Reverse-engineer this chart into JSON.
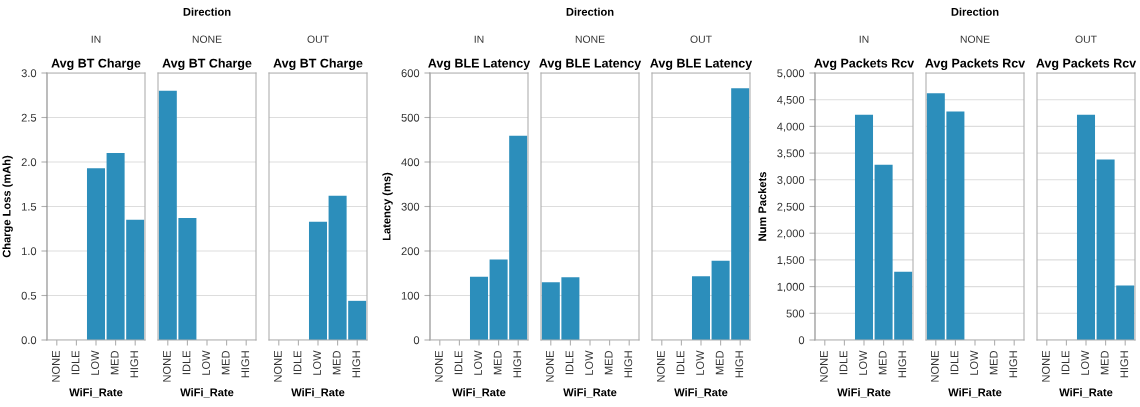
{
  "chart_data": [
    {
      "type": "bar",
      "title": "Avg BT Charge",
      "subtitle": "IN",
      "xlabel": "WiFi_Rate",
      "ylabel": "Charge Loss (mAh)",
      "categories": [
        "NONE",
        "IDLE",
        "LOW",
        "MED",
        "HIGH"
      ],
      "values": [
        null,
        null,
        1.93,
        2.1,
        1.35
      ],
      "color": "#2c8ebb",
      "ylim": [
        0,
        3
      ],
      "yticks": [
        {
          "value": 0,
          "label": "0.0"
        },
        0.5,
        {
          "value": 1,
          "label": "1.0"
        },
        1.5,
        {
          "value": 2,
          "label": "2.0"
        },
        2.5,
        {
          "value": 3,
          "label": "3.0"
        }
      ],
      "grid": "y"
    },
    {
      "type": "bar",
      "title": "Avg BT Charge",
      "subtitle": "NONE",
      "xlabel": "WiFi_Rate",
      "annotations": [
        "Direction"
      ],
      "categories": [
        "NONE",
        "IDLE",
        "LOW",
        "MED",
        "HIGH"
      ],
      "values": [
        2.8,
        1.37,
        null,
        null,
        null
      ],
      "color": "#2c8ebb",
      "ylim": [
        0,
        3
      ],
      "yticks": [
        0,
        0.5,
        1,
        1.5,
        2,
        2.5,
        3
      ],
      "grid": "y",
      "tick_labels": "x"
    },
    {
      "type": "bar",
      "title": "Avg BT Charge",
      "subtitle": "OUT",
      "xlabel": "WiFi_Rate",
      "categories": [
        "NONE",
        "IDLE",
        "LOW",
        "MED",
        "HIGH"
      ],
      "values": [
        null,
        null,
        1.33,
        1.62,
        0.44
      ],
      "color": "#2c8ebb",
      "ylim": [
        0,
        3
      ],
      "yticks": [
        0,
        0.5,
        1,
        1.5,
        2,
        2.5,
        3
      ],
      "grid": "y",
      "tick_labels": "x"
    },
    {
      "type": "bar",
      "title": "Avg BLE Latency",
      "subtitle": "IN",
      "xlabel": "WiFi_Rate",
      "ylabel": "Latency (ms)",
      "categories": [
        "NONE",
        "IDLE",
        "LOW",
        "MED",
        "HIGH"
      ],
      "values": [
        null,
        null,
        142,
        181,
        459
      ],
      "color": "#2c8ebb",
      "ylim": [
        0,
        600
      ],
      "yticks": [
        0,
        100,
        200,
        300,
        400,
        500,
        600
      ],
      "grid": "y"
    },
    {
      "type": "bar",
      "title": "Avg BLE Latency",
      "subtitle": "NONE",
      "xlabel": "WiFi_Rate",
      "annotations": [
        "Direction"
      ],
      "categories": [
        "NONE",
        "IDLE",
        "LOW",
        "MED",
        "HIGH"
      ],
      "values": [
        130,
        141,
        null,
        null,
        null
      ],
      "color": "#2c8ebb",
      "ylim": [
        0,
        600
      ],
      "yticks": [
        0,
        100,
        200,
        300,
        400,
        500,
        600
      ],
      "grid": "y",
      "tick_labels": "x"
    },
    {
      "type": "bar",
      "title": "Avg BLE Latency",
      "subtitle": "OUT",
      "xlabel": "WiFi_Rate",
      "categories": [
        "NONE",
        "IDLE",
        "LOW",
        "MED",
        "HIGH"
      ],
      "values": [
        null,
        null,
        143,
        178,
        566
      ],
      "color": "#2c8ebb",
      "ylim": [
        0,
        600
      ],
      "yticks": [
        0,
        100,
        200,
        300,
        400,
        500,
        600
      ],
      "grid": "y",
      "tick_labels": "x"
    },
    {
      "type": "bar",
      "title": "Avg Packets Rcv",
      "subtitle": "IN",
      "xlabel": "WiFi_Rate",
      "ylabel": "Num Packets",
      "categories": [
        "NONE",
        "IDLE",
        "LOW",
        "MED",
        "HIGH"
      ],
      "values": [
        null,
        null,
        4220,
        3280,
        1280
      ],
      "color": "#2c8ebb",
      "ylim": [
        0,
        5000
      ],
      "yticks": [
        0,
        500,
        {
          "value": 1000,
          "label": "1,000"
        },
        {
          "value": 1500,
          "label": "1,500"
        },
        {
          "value": 2000,
          "label": "2,000"
        },
        {
          "value": 2500,
          "label": "2,500"
        },
        {
          "value": 3000,
          "label": "3,000"
        },
        {
          "value": 3500,
          "label": "3,500"
        },
        {
          "value": 4000,
          "label": "4,000"
        },
        {
          "value": 4500,
          "label": "4,500"
        },
        {
          "value": 5000,
          "label": "5,000"
        }
      ],
      "grid": "y"
    },
    {
      "type": "bar",
      "title": "Avg Packets Rcv",
      "subtitle": "NONE",
      "xlabel": "WiFi_Rate",
      "annotations": [
        "Direction"
      ],
      "categories": [
        "NONE",
        "IDLE",
        "LOW",
        "MED",
        "HIGH"
      ],
      "values": [
        4620,
        4280,
        null,
        null,
        null
      ],
      "color": "#2c8ebb",
      "ylim": [
        0,
        5000
      ],
      "yticks": [
        0,
        500,
        1000,
        1500,
        2000,
        2500,
        3000,
        3500,
        4000,
        4500,
        5000
      ],
      "grid": "y",
      "tick_labels": "x"
    },
    {
      "type": "bar",
      "title": "Avg Packets Rcv",
      "subtitle": "OUT",
      "xlabel": "WiFi_Rate",
      "categories": [
        "NONE",
        "IDLE",
        "LOW",
        "MED",
        "HIGH"
      ],
      "values": [
        null,
        null,
        4220,
        3380,
        1020
      ],
      "color": "#2c8ebb",
      "ylim": [
        0,
        5000
      ],
      "yticks": [
        0,
        500,
        1000,
        1500,
        2000,
        2500,
        3000,
        3500,
        4000,
        4500,
        5000
      ],
      "grid": "y",
      "tick_labels": "x"
    }
  ]
}
